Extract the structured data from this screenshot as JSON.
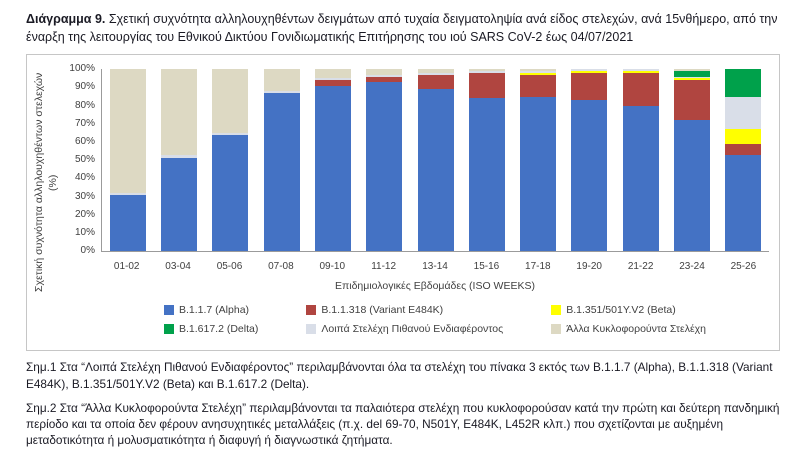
{
  "caption": {
    "bold": "Διάγραμμα 9.",
    "text": " Σχετική συχνότητα αλληλουχηθέντων δειγμάτων από τυχαία δειγματοληψία ανά είδος στελεχών, ανά 15νθήμερο, από την έναρξη της λειτουργίας του Εθνικού Δικτύου Γονιδιωματικής Επιτήρησης του ιού SARS CoV-2 έως 04/07/2021"
  },
  "chart_data": {
    "type": "bar",
    "stacked": true,
    "title": "Σχετική συχνότητα αλληλουχηθέντων δειγμάτων ανά είδος στελεχών ανά 15νθήμερο έως 04/07/2021",
    "xlabel": "Επιδημιολογικές Εβδομάδες (ISO WEEKS)",
    "ylabel": "Σχετική συχνότητα αλληλουχηθέντων στελεχών (%)",
    "ylim": [
      0,
      100
    ],
    "grid": false,
    "legend_position": "bottom",
    "y_ticks": [
      "0%",
      "10%",
      "20%",
      "30%",
      "40%",
      "50%",
      "60%",
      "70%",
      "80%",
      "90%",
      "100%"
    ],
    "categories": [
      "01-02",
      "03-04",
      "05-06",
      "07-08",
      "09-10",
      "11-12",
      "13-14",
      "15-16",
      "17-18",
      "19-20",
      "21-22",
      "23-24",
      "25-26"
    ],
    "series": [
      {
        "name": "B.1.1.7 (Alpha)",
        "color": "#4472C4",
        "values": [
          31,
          51,
          64,
          87,
          91,
          93,
          89,
          84,
          85,
          83,
          80,
          72,
          53
        ]
      },
      {
        "name": "B.1.1.318 (Variant E484K)",
        "color": "#B04540",
        "values": [
          0,
          0,
          0,
          0,
          3,
          3,
          8,
          14,
          12,
          15,
          18,
          22,
          6
        ]
      },
      {
        "name": "B.1.351/501Y.V2 (Beta)",
        "color": "#FFFF00",
        "values": [
          0,
          0,
          0,
          0,
          0,
          0,
          0,
          0,
          1,
          1,
          1,
          1,
          8
        ]
      },
      {
        "name": "Λοιπά Στελέχη Πιθανού Ενδιαφέροντος",
        "color": "#D9DEE8",
        "values": [
          1,
          2,
          1,
          1,
          1,
          1,
          1,
          1,
          1,
          1,
          1,
          1,
          18
        ]
      },
      {
        "name": "B.1.617.2 (Delta)",
        "color": "#00A14B",
        "values": [
          0,
          0,
          0,
          0,
          0,
          0,
          0,
          0,
          0,
          0,
          0,
          3,
          15
        ]
      },
      {
        "name": "Άλλα Κυκλοφορούντα Στελέχη",
        "color": "#DDD9C3",
        "values": [
          68,
          47,
          35,
          12,
          5,
          3,
          2,
          1,
          1,
          0,
          0,
          1,
          0
        ]
      }
    ],
    "legend_order": [
      0,
      1,
      2,
      4,
      3,
      5
    ]
  },
  "notes": {
    "note1": "Σημ.1 Στα “Λοιπά Στελέχη Πιθανού Ενδιαφέροντος” περιλαμβάνονται όλα τα στελέχη του πίνακα 3 εκτός των B.1.1.7 (Alpha), B.1.1.318 (Variant E484K), B.1.351/501Y.V2 (Beta) και B.1.617.2 (Delta).",
    "note2": "Σημ.2 Στα “Άλλα Κυκλοφορούντα Στελέχη” περιλαμβάνονται τα παλαιότερα στελέχη που κυκλοφορούσαν κατά την πρώτη και δεύτερη πανδημική περίοδο και τα οποία δεν φέρουν ανησυχητικές μεταλλάξεις (π.χ. del 69-70, N501Y, E484K, L452R κλπ.) που σχετίζονται με αυξημένη μεταδοτικότητα ή μολυσματικότητα ή διαφυγή ή διαγνωστικά ζητήματα."
  }
}
